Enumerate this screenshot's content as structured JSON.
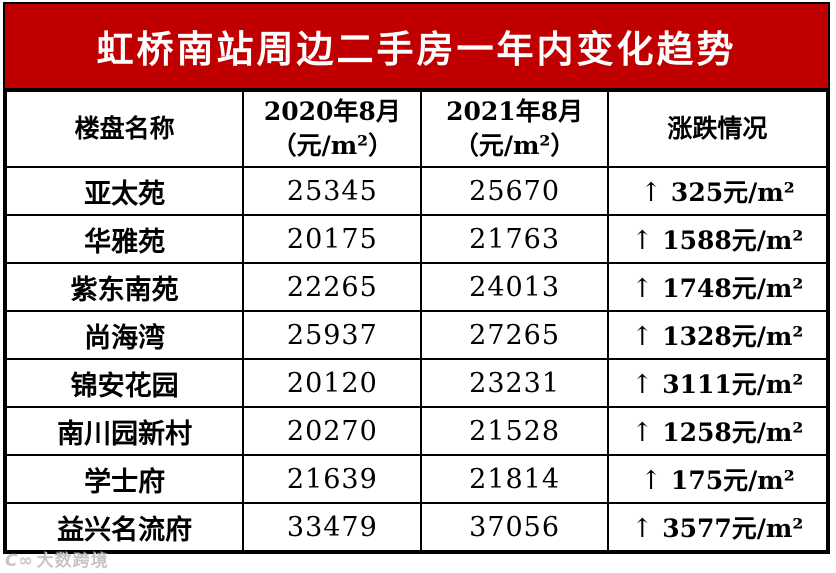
{
  "colors": {
    "banner_background": "#c00000",
    "banner_text": "#ffffff",
    "table_border": "#000000",
    "cell_text": "#000000",
    "page_background": "#ffffff"
  },
  "chart_data": {
    "type": "table",
    "title": "虹桥南站周边二手房一年内变化趋势",
    "columns": [
      {
        "line1": "楼盘名称",
        "line2": ""
      },
      {
        "line1": "2020年8月",
        "line2": "（元/m²）"
      },
      {
        "line1": "2021年8月",
        "line2": "（元/m²）"
      },
      {
        "line1": "涨跌情况",
        "line2": ""
      }
    ],
    "rows": [
      {
        "name": "亚太苑",
        "aug2020": 25345,
        "aug2021": 25670,
        "change_arrow": "↑",
        "change": "325元/m²"
      },
      {
        "name": "华雅苑",
        "aug2020": 20175,
        "aug2021": 21763,
        "change_arrow": "↑",
        "change": "1588元/m²"
      },
      {
        "name": "紫东南苑",
        "aug2020": 22265,
        "aug2021": 24013,
        "change_arrow": "↑",
        "change": "1748元/m²"
      },
      {
        "name": "尚海湾",
        "aug2020": 25937,
        "aug2021": 27265,
        "change_arrow": "↑",
        "change": "1328元/m²"
      },
      {
        "name": "锦安花园",
        "aug2020": 20120,
        "aug2021": 23231,
        "change_arrow": "↑",
        "change": "3111元/m²"
      },
      {
        "name": "南川园新村",
        "aug2020": 20270,
        "aug2021": 21528,
        "change_arrow": "↑",
        "change": "1258元/m²"
      },
      {
        "name": "学士府",
        "aug2020": 21639,
        "aug2021": 21814,
        "change_arrow": "↑",
        "change": "175元/m²"
      },
      {
        "name": "益兴名流府",
        "aug2020": 33479,
        "aug2021": 37056,
        "change_arrow": "↑",
        "change": "3577元/m²"
      }
    ]
  },
  "watermark": {
    "logo": "C∞",
    "text": "大数跨境"
  }
}
